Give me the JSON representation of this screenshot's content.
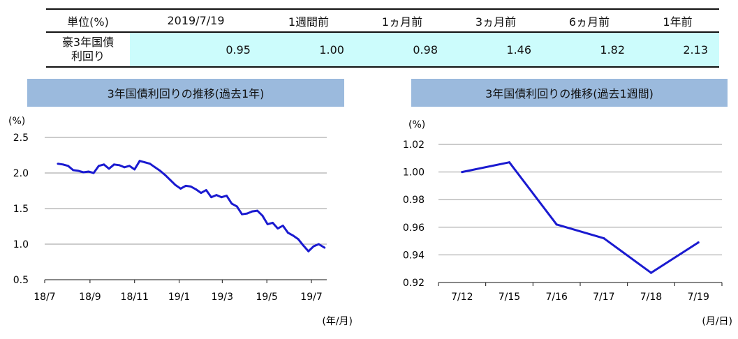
{
  "table": {
    "header_label": "単位(%)",
    "columns": [
      "2019/7/19",
      "1週間前",
      "1ヵ月前",
      "3ヵ月前",
      "6ヵ月前",
      "1年前"
    ],
    "row_label_lines": [
      "豪3年国債",
      "利回り"
    ],
    "values": [
      "0.95",
      "1.00",
      "0.98",
      "1.46",
      "1.82",
      "2.13"
    ]
  },
  "chart_data": [
    {
      "type": "line",
      "title": "3年国債利回りの推移(過去1年)",
      "ylabel": "(%)",
      "xlabel": "(年/月)",
      "ylim": [
        0.5,
        2.5
      ],
      "yticks": [
        "0.5",
        "1.0",
        "1.5",
        "2.0",
        "2.5"
      ],
      "xticks": [
        "18/7",
        "18/9",
        "18/11",
        "19/1",
        "19/3",
        "19/5",
        "19/7"
      ],
      "grid": true,
      "color": "#1a1ad0",
      "series": [
        {
          "x": [
            "2018-07-19",
            "2018-07-26",
            "2018-08-02",
            "2018-08-09",
            "2018-08-16",
            "2018-08-23",
            "2018-08-30",
            "2018-09-06",
            "2018-09-13",
            "2018-09-20",
            "2018-09-27",
            "2018-10-04",
            "2018-10-11",
            "2018-10-18",
            "2018-10-25",
            "2018-11-01",
            "2018-11-08",
            "2018-11-15",
            "2018-11-22",
            "2018-11-29",
            "2018-12-06",
            "2018-12-13",
            "2018-12-20",
            "2018-12-27",
            "2019-01-03",
            "2019-01-10",
            "2019-01-17",
            "2019-01-24",
            "2019-01-31",
            "2019-02-07",
            "2019-02-14",
            "2019-02-21",
            "2019-02-28",
            "2019-03-07",
            "2019-03-14",
            "2019-03-21",
            "2019-03-28",
            "2019-04-04",
            "2019-04-11",
            "2019-04-18",
            "2019-04-25",
            "2019-05-02",
            "2019-05-09",
            "2019-05-16",
            "2019-05-23",
            "2019-05-30",
            "2019-06-06",
            "2019-06-13",
            "2019-06-20",
            "2019-06-27",
            "2019-07-04",
            "2019-07-11",
            "2019-07-19"
          ],
          "y": [
            2.13,
            2.12,
            2.1,
            2.04,
            2.03,
            2.01,
            2.02,
            2.0,
            2.1,
            2.12,
            2.06,
            2.12,
            2.11,
            2.08,
            2.1,
            2.05,
            2.17,
            2.15,
            2.13,
            2.08,
            2.03,
            1.97,
            1.9,
            1.83,
            1.78,
            1.82,
            1.81,
            1.77,
            1.72,
            1.76,
            1.66,
            1.69,
            1.66,
            1.68,
            1.57,
            1.53,
            1.42,
            1.43,
            1.46,
            1.47,
            1.4,
            1.28,
            1.3,
            1.22,
            1.26,
            1.16,
            1.12,
            1.07,
            0.98,
            0.9,
            0.97,
            1.0,
            0.95
          ]
        }
      ]
    },
    {
      "type": "line",
      "title": "3年国債利回りの推移(過去1週間)",
      "ylabel": "(%)",
      "xlabel": "(月/日)",
      "ylim": [
        0.92,
        1.02
      ],
      "yticks": [
        "0.92",
        "0.94",
        "0.96",
        "0.98",
        "1.00",
        "1.02"
      ],
      "grid": true,
      "color": "#1a1ad0",
      "categories": [
        "7/12",
        "7/15",
        "7/16",
        "7/17",
        "7/18",
        "7/19"
      ],
      "series": [
        {
          "values": [
            1.0,
            1.007,
            0.962,
            0.952,
            0.927,
            0.949
          ]
        }
      ]
    }
  ]
}
